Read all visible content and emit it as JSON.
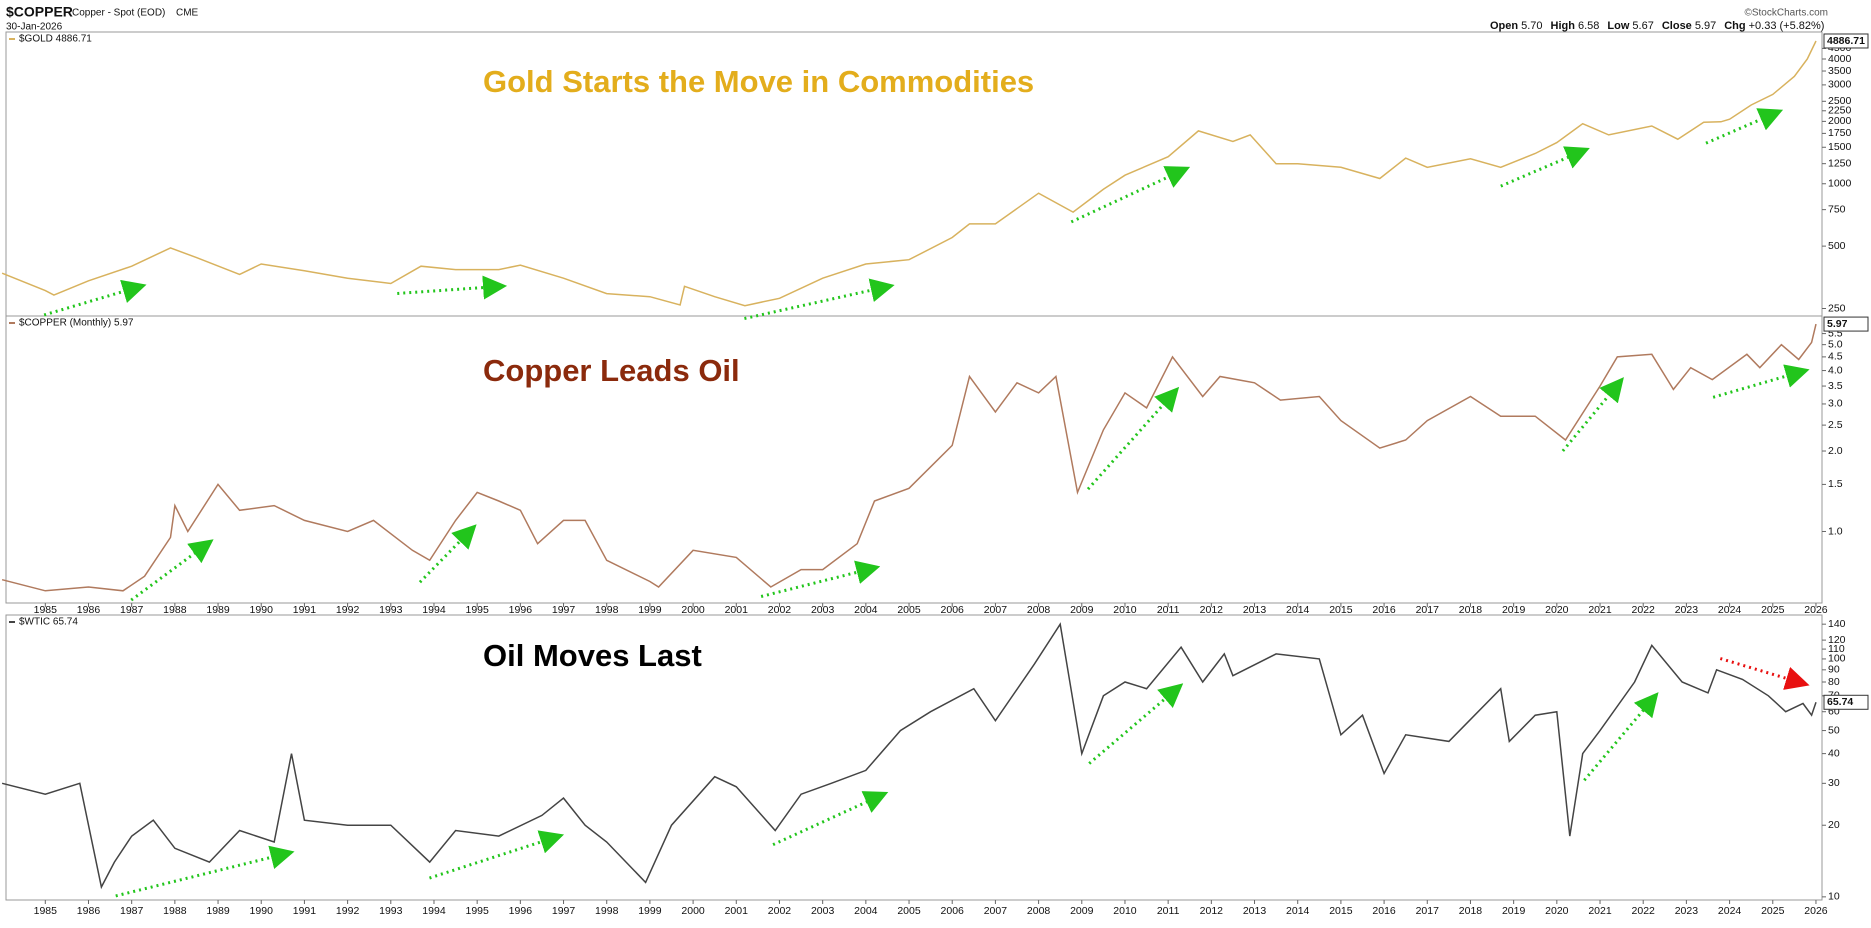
{
  "header": {
    "symbol": "$COPPER",
    "name": "Copper - Spot (EOD)",
    "exchange": "CME",
    "date": "30-Jan-2026",
    "copyright": "©StockCharts.com",
    "quote": [
      {
        "label": "Open",
        "value": "5.70"
      },
      {
        "label": "High",
        "value": "6.58"
      },
      {
        "label": "Low",
        "value": "5.67"
      },
      {
        "label": "Close",
        "value": "5.97"
      },
      {
        "label": "Chg",
        "value": "+0.33 (+5.82%)"
      }
    ]
  },
  "chart_data": [
    {
      "type": "line",
      "title": "Gold Starts the Move in Commodities",
      "title_color": "#e3ad1c",
      "log_scale": true,
      "xlim": [
        1984.09,
        2026.14
      ],
      "ylim": [
        230,
        5400
      ],
      "yticks": [
        250,
        500,
        750,
        1000,
        1250,
        1500,
        1750,
        2000,
        2250,
        2500,
        3000,
        3500,
        4000,
        4500
      ],
      "x": [
        1984.0,
        1985.0,
        1985.2,
        1986.0,
        1987.0,
        1987.9,
        1988.5,
        1989.5,
        1990.0,
        1991.0,
        1992.0,
        1993.0,
        1993.7,
        1994.5,
        1995.5,
        1996.0,
        1997.0,
        1998.0,
        1999.0,
        1999.7,
        1999.8,
        2000.5,
        2001.2,
        2002.0,
        2003.0,
        2004.0,
        2005.0,
        2006.0,
        2006.4,
        2007.0,
        2008.0,
        2008.8,
        2009.5,
        2010.0,
        2011.0,
        2011.7,
        2012.5,
        2012.9,
        2013.5,
        2014.0,
        2015.0,
        2015.9,
        2016.5,
        2017.0,
        2018.0,
        2018.7,
        2019.5,
        2020.0,
        2020.6,
        2021.2,
        2022.2,
        2022.8,
        2023.4,
        2023.8,
        2024.0,
        2024.5,
        2025.0,
        2025.5,
        2025.8,
        2026.0
      ],
      "series": [
        {
          "name": "$GOLD 4886.71",
          "color": "#d8b25e",
          "last_label": "4886.71",
          "values": [
            370,
            305,
            290,
            340,
            400,
            490,
            440,
            365,
            410,
            380,
            350,
            330,
            400,
            385,
            385,
            405,
            350,
            295,
            285,
            260,
            320,
            285,
            258,
            280,
            350,
            410,
            430,
            550,
            640,
            640,
            900,
            730,
            940,
            1100,
            1350,
            1800,
            1600,
            1720,
            1250,
            1250,
            1200,
            1060,
            1330,
            1200,
            1320,
            1200,
            1400,
            1580,
            1950,
            1720,
            1900,
            1640,
            1980,
            1990,
            2050,
            2400,
            2700,
            3300,
            4000,
            4886.71
          ]
        }
      ]
    },
    {
      "type": "line",
      "title": "Copper Leads Oil",
      "title_color": "#8b2a0c",
      "log_scale": true,
      "xlim": [
        1984.09,
        2026.14
      ],
      "ylim": [
        0.54,
        6.4
      ],
      "yticks": [
        {
          "value": 1,
          "label": "1.0"
        },
        1.5,
        {
          "value": 2,
          "label": "2.0"
        },
        2.5,
        {
          "value": 3,
          "label": "3.0"
        },
        3.5,
        {
          "value": 4,
          "label": "4.0"
        },
        4.5,
        {
          "value": 5,
          "label": "5.0"
        },
        5.5
      ],
      "xticks": [
        1985,
        1986,
        1987,
        1988,
        1989,
        1990,
        1991,
        1992,
        1993,
        1994,
        1995,
        1996,
        1997,
        1998,
        1999,
        2000,
        2001,
        2002,
        2003,
        2004,
        2005,
        2006,
        2007,
        2008,
        2009,
        2010,
        2011,
        2012,
        2013,
        2014,
        2015,
        2016,
        2017,
        2018,
        2019,
        2020,
        2021,
        2022,
        2023,
        2024,
        2025,
        2026
      ],
      "x": [
        1984.0,
        1985.0,
        1986.0,
        1986.8,
        1987.3,
        1987.9,
        1988.0,
        1988.3,
        1989.0,
        1989.5,
        1990.3,
        1991.0,
        1992.0,
        1992.6,
        1993.5,
        1993.9,
        1994.5,
        1995.0,
        1995.5,
        1996.0,
        1996.4,
        1997.0,
        1997.5,
        1998.0,
        1999.0,
        1999.2,
        2000.0,
        2001.0,
        2001.8,
        2002.5,
        2003.0,
        2003.8,
        2004.2,
        2005.0,
        2006.0,
        2006.4,
        2007.0,
        2007.5,
        2008.0,
        2008.4,
        2008.9,
        2009.5,
        2010.0,
        2010.5,
        2011.1,
        2011.8,
        2012.2,
        2013.0,
        2013.6,
        2014.5,
        2015.0,
        2015.9,
        2016.5,
        2017.0,
        2018.0,
        2018.7,
        2019.5,
        2020.2,
        2021.0,
        2021.4,
        2022.2,
        2022.7,
        2023.1,
        2023.6,
        2024.4,
        2024.7,
        2025.2,
        2025.6,
        2025.9,
        2026.0
      ],
      "series": [
        {
          "name": "$COPPER (Monthly) 5.97",
          "color": "#b07a5e",
          "last_label": "5.97",
          "values": [
            0.66,
            0.6,
            0.62,
            0.6,
            0.68,
            0.95,
            1.25,
            1.0,
            1.5,
            1.2,
            1.25,
            1.1,
            1.0,
            1.1,
            0.85,
            0.78,
            1.1,
            1.4,
            1.3,
            1.2,
            0.9,
            1.1,
            1.1,
            0.78,
            0.65,
            0.62,
            0.85,
            0.8,
            0.62,
            0.72,
            0.72,
            0.9,
            1.3,
            1.45,
            2.1,
            3.8,
            2.8,
            3.6,
            3.3,
            3.8,
            1.4,
            2.4,
            3.3,
            2.9,
            4.5,
            3.2,
            3.8,
            3.6,
            3.1,
            3.2,
            2.6,
            2.05,
            2.2,
            2.6,
            3.2,
            2.7,
            2.7,
            2.2,
            3.5,
            4.5,
            4.6,
            3.4,
            4.1,
            3.7,
            4.6,
            4.1,
            5.0,
            4.4,
            5.1,
            5.97
          ]
        }
      ]
    },
    {
      "type": "line",
      "title": "Oil Moves Last",
      "title_color": "#000000",
      "log_scale": true,
      "xlim": [
        1984.09,
        2026.14
      ],
      "ylim": [
        9.7,
        153
      ],
      "yticks": [
        10,
        20,
        30,
        40,
        50,
        60,
        70,
        80,
        90,
        100,
        110,
        120,
        140
      ],
      "xticks": [
        1985,
        1986,
        1987,
        1988,
        1989,
        1990,
        1991,
        1992,
        1993,
        1994,
        1995,
        1996,
        1997,
        1998,
        1999,
        2000,
        2001,
        2002,
        2003,
        2004,
        2005,
        2006,
        2007,
        2008,
        2009,
        2010,
        2011,
        2012,
        2013,
        2014,
        2015,
        2016,
        2017,
        2018,
        2019,
        2020,
        2021,
        2022,
        2023,
        2024,
        2025,
        2026
      ],
      "x": [
        1984.0,
        1985.0,
        1985.8,
        1986.3,
        1986.6,
        1987.0,
        1987.5,
        1988.0,
        1988.8,
        1989.5,
        1990.3,
        1990.7,
        1991.0,
        1992.0,
        1993.0,
        1993.9,
        1994.5,
        1995.5,
        1996.5,
        1997.0,
        1997.5,
        1998.0,
        1998.9,
        1999.5,
        2000.5,
        2001.0,
        2001.9,
        2002.5,
        2003.2,
        2004.0,
        2004.8,
        2005.5,
        2006.5,
        2007.0,
        2007.9,
        2008.5,
        2009.0,
        2009.5,
        2010.0,
        2010.5,
        2011.3,
        2011.8,
        2012.3,
        2012.5,
        2013.5,
        2014.5,
        2015.0,
        2015.5,
        2016.0,
        2016.5,
        2017.5,
        2018.7,
        2018.9,
        2019.5,
        2020.0,
        2020.3,
        2020.6,
        2021.0,
        2021.8,
        2022.2,
        2022.9,
        2023.5,
        2023.7,
        2024.3,
        2024.9,
        2025.3,
        2025.7,
        2025.9,
        2026.0
      ],
      "series": [
        {
          "name": "$WTIC 65.74",
          "color": "#444444",
          "last_label": "65.74",
          "values": [
            30,
            27,
            30,
            11,
            14,
            18,
            21,
            16,
            14,
            19,
            17,
            40,
            21,
            20,
            20,
            14,
            19,
            18,
            22,
            26,
            20,
            17,
            11.5,
            20,
            32,
            29,
            19,
            27,
            30,
            34,
            50,
            60,
            75,
            55,
            95,
            140,
            40,
            70,
            80,
            75,
            112,
            80,
            105,
            85,
            105,
            100,
            48,
            58,
            33,
            48,
            45,
            75,
            45,
            58,
            60,
            18,
            40,
            50,
            80,
            114,
            80,
            72,
            90,
            82,
            70,
            60,
            65,
            58,
            65.74
          ]
        }
      ]
    }
  ]
}
